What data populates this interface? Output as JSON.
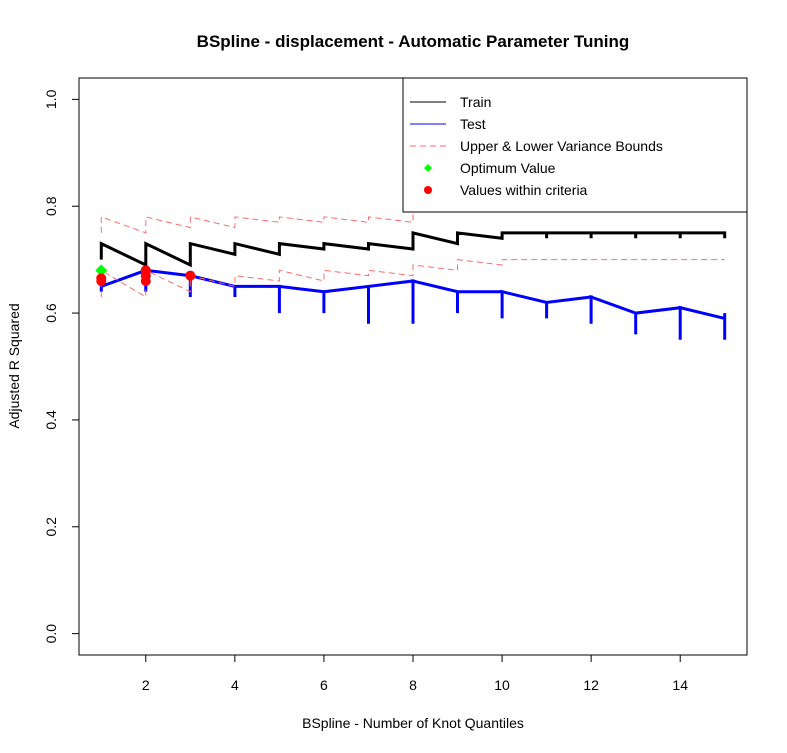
{
  "chart_data": {
    "type": "line",
    "title": "BSpline - displacement - Automatic Parameter Tuning",
    "xlabel": "BSpline - Number of Knot Quantiles",
    "ylabel": "Adjusted R Squared",
    "xlim": [
      0.5,
      15.5
    ],
    "ylim": [
      -0.04,
      1.04
    ],
    "x_ticks": [
      2,
      4,
      6,
      8,
      10,
      12,
      14
    ],
    "y_ticks": [
      0.0,
      0.2,
      0.4,
      0.6,
      0.8,
      1.0
    ],
    "x_tick_labels": [
      "2",
      "4",
      "6",
      "8",
      "10",
      "12",
      "14"
    ],
    "y_tick_labels": [
      "0.0",
      "0.2",
      "0.4",
      "0.6",
      "0.8",
      "1.0"
    ],
    "grid": false,
    "legend_position": "top-right",
    "legend": [
      {
        "label": "Train",
        "kind": "line",
        "color": "#000000",
        "dashed": false
      },
      {
        "label": "Test",
        "kind": "line",
        "color": "#0000ff",
        "dashed": false
      },
      {
        "label": "Upper & Lower Variance Bounds",
        "kind": "line",
        "color": "#ff6b6b",
        "dashed": true
      },
      {
        "label": "Optimum Value",
        "kind": "point",
        "color": "#00ff00",
        "shape": "diamond"
      },
      {
        "label": "Values within criteria",
        "kind": "point",
        "color": "#ff0000",
        "shape": "circle"
      }
    ],
    "x": [
      1,
      2,
      3,
      4,
      5,
      6,
      7,
      8,
      9,
      10,
      11,
      12,
      13,
      14,
      15
    ],
    "series": [
      {
        "name": "Train",
        "color": "#000000",
        "dashed": false,
        "segments": [
          [
            0.7,
            0.73,
            0.69
          ],
          [
            0.7,
            0.73,
            0.69
          ],
          [
            0.69,
            0.73,
            0.71
          ],
          [
            0.71,
            0.73,
            0.71
          ],
          [
            0.71,
            0.73,
            0.72
          ],
          [
            0.72,
            0.73,
            0.72
          ],
          [
            0.72,
            0.73,
            0.72
          ],
          [
            0.72,
            0.75,
            0.73
          ],
          [
            0.73,
            0.75,
            0.74
          ],
          [
            0.74,
            0.75,
            0.75
          ],
          [
            0.74,
            0.75,
            0.75
          ],
          [
            0.74,
            0.75,
            0.75
          ],
          [
            0.74,
            0.75,
            0.75
          ],
          [
            0.74,
            0.75,
            0.75
          ],
          [
            0.74,
            0.75,
            0.75
          ]
        ]
      },
      {
        "name": "Test",
        "color": "#0000ff",
        "dashed": false,
        "segments": [
          [
            0.64,
            0.65,
            0.68
          ],
          [
            0.64,
            0.68,
            0.67
          ],
          [
            0.63,
            0.67,
            0.65
          ],
          [
            0.63,
            0.65,
            0.65
          ],
          [
            0.6,
            0.65,
            0.64
          ],
          [
            0.6,
            0.64,
            0.65
          ],
          [
            0.58,
            0.65,
            0.66
          ],
          [
            0.58,
            0.66,
            0.64
          ],
          [
            0.6,
            0.64,
            0.64
          ],
          [
            0.59,
            0.64,
            0.62
          ],
          [
            0.59,
            0.62,
            0.63
          ],
          [
            0.58,
            0.63,
            0.6
          ],
          [
            0.56,
            0.6,
            0.61
          ],
          [
            0.55,
            0.61,
            0.59
          ],
          [
            0.55,
            0.6,
            0.59
          ]
        ]
      },
      {
        "name": "Upper Variance Bound",
        "color": "#ff6b6b",
        "dashed": true,
        "segments": [
          [
            0.75,
            0.78,
            0.75
          ],
          [
            0.75,
            0.78,
            0.76
          ],
          [
            0.76,
            0.78,
            0.76
          ],
          [
            0.76,
            0.78,
            0.77
          ],
          [
            0.77,
            0.78,
            0.77
          ],
          [
            0.77,
            0.78,
            0.77
          ],
          [
            0.77,
            0.78,
            0.77
          ],
          [
            0.77,
            0.79,
            0.79
          ],
          [
            0.79,
            0.8,
            0.8
          ],
          [
            0.8,
            0.8,
            0.8
          ],
          [
            0.8,
            0.8,
            0.8
          ],
          [
            0.8,
            0.8,
            0.8
          ],
          [
            0.8,
            0.8,
            0.8
          ],
          [
            0.8,
            0.8,
            0.8
          ],
          [
            0.8,
            0.8,
            0.8
          ]
        ]
      },
      {
        "name": "Lower Variance Bound",
        "color": "#ff6b6b",
        "dashed": true,
        "segments": [
          [
            0.63,
            0.68,
            0.63
          ],
          [
            0.63,
            0.68,
            0.64
          ],
          [
            0.64,
            0.67,
            0.65
          ],
          [
            0.65,
            0.67,
            0.66
          ],
          [
            0.66,
            0.68,
            0.66
          ],
          [
            0.66,
            0.68,
            0.67
          ],
          [
            0.67,
            0.68,
            0.67
          ],
          [
            0.67,
            0.69,
            0.68
          ],
          [
            0.68,
            0.7,
            0.69
          ],
          [
            0.69,
            0.7,
            0.7
          ],
          [
            0.7,
            0.7,
            0.7
          ],
          [
            0.7,
            0.7,
            0.7
          ],
          [
            0.7,
            0.7,
            0.7
          ],
          [
            0.7,
            0.7,
            0.7
          ],
          [
            0.7,
            0.7,
            0.7
          ]
        ]
      }
    ],
    "points": [
      {
        "name": "Optimum Value",
        "color": "#00ff00",
        "shape": "diamond",
        "x": 1,
        "y": 0.68
      },
      {
        "name": "Values within criteria",
        "color": "#ff0000",
        "shape": "circle",
        "x": 1,
        "y": 0.665
      },
      {
        "name": "Values within criteria",
        "color": "#ff0000",
        "shape": "circle",
        "x": 1,
        "y": 0.66
      },
      {
        "name": "Values within criteria",
        "color": "#ff0000",
        "shape": "circle",
        "x": 2,
        "y": 0.68
      },
      {
        "name": "Values within criteria",
        "color": "#ff0000",
        "shape": "circle",
        "x": 2,
        "y": 0.67
      },
      {
        "name": "Values within criteria",
        "color": "#ff0000",
        "shape": "circle",
        "x": 2,
        "y": 0.66
      },
      {
        "name": "Values within criteria",
        "color": "#ff0000",
        "shape": "circle",
        "x": 3,
        "y": 0.67
      }
    ]
  }
}
